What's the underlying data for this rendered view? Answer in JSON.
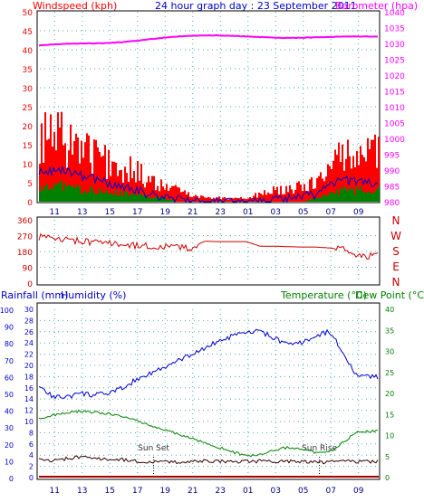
{
  "chart_data": [
    {
      "type": "line",
      "title": "24 hour graph day : 23 September 2011",
      "left_axis_label": "Windspeed (kph)",
      "right_axis_label": "Barometer (hpa)",
      "x_ticks": [
        "11",
        "13",
        "15",
        "17",
        "19",
        "21",
        "23",
        "01",
        "03",
        "05",
        "07",
        "09"
      ],
      "y_left": {
        "min": 0,
        "max": 50,
        "ticks": [
          "0",
          "5",
          "10",
          "15",
          "20",
          "25",
          "30",
          "35",
          "40",
          "45",
          "50"
        ]
      },
      "y_right": {
        "min": 980,
        "max": 1040,
        "ticks": [
          "980",
          "985",
          "990",
          "995",
          "1000",
          "1005",
          "1010",
          "1015",
          "1020",
          "1025",
          "1030",
          "1035",
          "1040"
        ]
      },
      "series": [
        {
          "name": "Windspeed (kph)",
          "color": "#ff0000",
          "style": "bars",
          "hours": [
            10,
            11,
            12,
            13,
            14,
            15,
            16,
            17,
            18,
            19,
            20,
            21,
            22,
            23,
            0,
            1,
            2,
            3,
            4,
            5,
            6,
            7,
            8,
            9
          ],
          "values": [
            16,
            17,
            16,
            15,
            12,
            10,
            9,
            8,
            5,
            4,
            3,
            2,
            1,
            1,
            1,
            1,
            2,
            3,
            3,
            4,
            5,
            9,
            13,
            13
          ]
        },
        {
          "name": "Wind gust",
          "color": "#0000cc",
          "style": "line",
          "hours": [
            10,
            11,
            12,
            13,
            14,
            15,
            16,
            17,
            18,
            19,
            20,
            21,
            22,
            23,
            0,
            1,
            2,
            3,
            4,
            5,
            6,
            7,
            8,
            9
          ],
          "values": [
            8,
            8,
            8,
            7,
            6,
            5,
            4,
            3,
            2,
            1,
            1,
            0,
            0,
            0,
            0,
            0,
            0,
            1,
            1,
            1,
            2,
            4,
            6,
            5
          ]
        },
        {
          "name": "Average wind",
          "color": "#008000",
          "style": "bars",
          "hours": [
            10,
            11,
            12,
            13,
            14,
            15,
            16,
            17,
            18,
            19,
            20,
            21,
            22,
            23,
            0,
            1,
            2,
            3,
            4,
            5,
            6,
            7,
            8,
            9
          ],
          "values": [
            4,
            4,
            4,
            3,
            3,
            3,
            2,
            2,
            1,
            1,
            0,
            0,
            0,
            0,
            0,
            0,
            0,
            0,
            0,
            0,
            1,
            2,
            3,
            3
          ]
        },
        {
          "name": "Barometer (hpa)",
          "color": "#ff00ff",
          "style": "line",
          "axis": "right",
          "hours": [
            10,
            11,
            12,
            13,
            14,
            15,
            16,
            17,
            18,
            19,
            20,
            21,
            22,
            23,
            0,
            1,
            2,
            3,
            4,
            5,
            6,
            7,
            8,
            9
          ],
          "values": [
            1029.3,
            1029.7,
            1029.9,
            1030,
            1030,
            1030.1,
            1030.4,
            1030.8,
            1031.3,
            1031.8,
            1032.2,
            1032.4,
            1032.5,
            1032.5,
            1032.4,
            1032.2,
            1032,
            1031.8,
            1031.7,
            1031.8,
            1031.9,
            1032,
            1032.2,
            1032.2
          ]
        }
      ],
      "grid": true
    },
    {
      "type": "line",
      "right_axis_label": "N W S E N",
      "x_ticks": [
        "11",
        "13",
        "15",
        "17",
        "19",
        "21",
        "23",
        "01",
        "03",
        "05",
        "07",
        "09"
      ],
      "y": {
        "min": 0,
        "max": 360,
        "ticks": [
          "0",
          "90",
          "180",
          "270",
          "360"
        ]
      },
      "series": [
        {
          "name": "Wind direction",
          "color": "#cc0000",
          "hours": [
            10,
            11,
            12,
            13,
            14,
            15,
            16,
            17,
            18,
            19,
            20,
            21,
            22,
            23,
            0,
            1,
            2,
            3,
            4,
            5,
            6,
            7,
            8,
            9
          ],
          "values": [
            262,
            250,
            244,
            238,
            232,
            226,
            220,
            214,
            210,
            205,
            204,
            200,
            238,
            236,
            236,
            236,
            210,
            210,
            207,
            205,
            205,
            200,
            190,
            155
          ]
        }
      ],
      "grid": true
    },
    {
      "type": "line",
      "left_axis_label_1": "Rainfall (mm)",
      "left_axis_label_2": "Humidity (%)",
      "right_axis_label_1": "Temperature (°C)",
      "right_axis_label_2": "Dew Point (°C)",
      "annotations": [
        "Sun Set",
        "Sun Rise"
      ],
      "x_ticks": [
        "11",
        "13",
        "15",
        "17",
        "19",
        "21",
        "23",
        "01",
        "03",
        "05",
        "07",
        "09"
      ],
      "y_humidity": {
        "min": 0,
        "max": 100,
        "ticks": [
          "0",
          "10",
          "20",
          "30",
          "40",
          "50",
          "60",
          "70",
          "80",
          "90",
          "100"
        ]
      },
      "y_rainfall": {
        "min": 0,
        "max": 30,
        "ticks": [
          "0",
          "2",
          "4",
          "6",
          "8",
          "10",
          "12",
          "14",
          "16",
          "18",
          "20",
          "22",
          "24",
          "26",
          "28",
          "30"
        ]
      },
      "y_temperature": {
        "min": 0,
        "max": 40,
        "ticks": [
          "0",
          "5",
          "10",
          "15",
          "20",
          "25",
          "30",
          "35",
          "40"
        ]
      },
      "series": [
        {
          "name": "Humidity (%)",
          "color": "#0000cc",
          "axis": "humidity",
          "hours": [
            10,
            11,
            12,
            13,
            14,
            15,
            16,
            17,
            18,
            19,
            20,
            21,
            22,
            23,
            0,
            1,
            2,
            3,
            4,
            5,
            6,
            7,
            8,
            9
          ],
          "values": [
            55,
            48,
            48,
            50,
            49,
            50,
            53,
            58,
            62,
            65,
            69,
            73,
            77,
            81,
            84,
            86,
            87,
            83,
            79,
            80,
            84,
            87,
            75,
            60
          ]
        },
        {
          "name": "Temperature (°C)",
          "color": "#008000",
          "axis": "temperature",
          "hours": [
            10,
            11,
            12,
            13,
            14,
            15,
            16,
            17,
            18,
            19,
            20,
            21,
            22,
            23,
            0,
            1,
            2,
            3,
            4,
            5,
            6,
            7,
            8,
            9
          ],
          "values": [
            14,
            14.8,
            15.4,
            15.8,
            15.5,
            15.2,
            14.6,
            13.6,
            12.5,
            11.4,
            10.4,
            9.3,
            8.3,
            7.2,
            6.1,
            5.2,
            5.4,
            6.4,
            7.2,
            6.8,
            5.9,
            6,
            8.3,
            11
          ]
        },
        {
          "name": "Dew Point (°C)",
          "color": "#330000",
          "axis": "temperature",
          "hours": [
            10,
            11,
            12,
            13,
            14,
            15,
            16,
            17,
            18,
            19,
            20,
            21,
            22,
            23,
            0,
            1,
            2,
            3,
            4,
            5,
            6,
            7,
            8,
            9
          ],
          "values": [
            4.3,
            3.9,
            4.5,
            4.9,
            4.5,
            4.3,
            4.3,
            3.9,
            3.7,
            3.7,
            3.7,
            3.8,
            3.9,
            3.9,
            3.8,
            3.8,
            3.9,
            3.9,
            3.9,
            3.8,
            3.7,
            3.6,
            4.1,
            3.8
          ]
        },
        {
          "name": "Rainfall (mm)",
          "color": "#aa0000",
          "axis": "rainfall",
          "hours": [
            10,
            11,
            12,
            13,
            14,
            15,
            16,
            17,
            18,
            19,
            20,
            21,
            22,
            23,
            0,
            1,
            2,
            3,
            4,
            5,
            6,
            7,
            8,
            9
          ],
          "values": [
            0,
            0,
            0,
            0,
            0,
            0,
            0,
            0,
            0,
            0,
            0,
            0,
            0,
            0,
            0,
            0,
            0,
            0,
            0,
            0,
            0,
            0,
            0,
            0
          ]
        }
      ],
      "grid": true
    }
  ],
  "colors": {
    "wind": "#ff0000",
    "baro": "#ff00ff",
    "humidity": "#0000cc",
    "temperature": "#008000",
    "dewpoint": "#330000"
  }
}
